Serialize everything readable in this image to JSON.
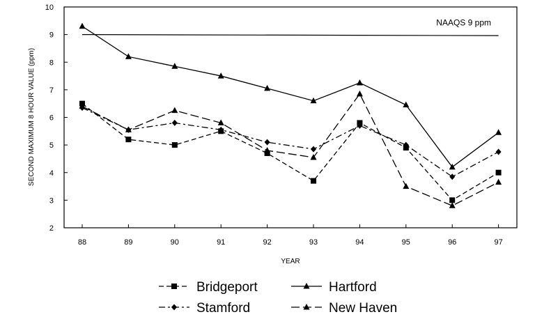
{
  "chart_data": {
    "type": "line",
    "xlabel": "YEAR",
    "ylabel": "SECOND MAXIMUM 8 HOUR VALUE (ppm)",
    "x": [
      "88",
      "89",
      "90",
      "91",
      "92",
      "93",
      "94",
      "95",
      "96",
      "97"
    ],
    "ylim": [
      2,
      10
    ],
    "yticks": [
      "2",
      "3",
      "4",
      "5",
      "6",
      "7",
      "8",
      "9",
      "10"
    ],
    "grid": false,
    "legend_position": "bottom",
    "reference_line": {
      "label": "NAAQS 9 ppm",
      "value": 9
    },
    "series": [
      {
        "name": "Bridgeport",
        "marker": "square",
        "dash": "dashed",
        "values": [
          6.5,
          5.2,
          5.0,
          5.5,
          4.7,
          3.7,
          5.8,
          4.9,
          3.0,
          4.0
        ]
      },
      {
        "name": "Hartford",
        "marker": "triangle",
        "dash": "solid",
        "values": [
          9.3,
          8.2,
          7.85,
          7.5,
          7.05,
          6.6,
          7.25,
          6.45,
          4.2,
          5.45
        ]
      },
      {
        "name": "Stamford",
        "marker": "diamond",
        "dash": "dashdot",
        "values": [
          6.35,
          5.55,
          5.8,
          5.55,
          5.1,
          4.85,
          5.7,
          5.0,
          3.85,
          4.75
        ]
      },
      {
        "name": "New Haven",
        "marker": "triangle",
        "dash": "longdash",
        "values": [
          6.4,
          5.55,
          6.25,
          5.8,
          4.8,
          4.55,
          6.85,
          3.5,
          2.8,
          3.65
        ]
      }
    ]
  }
}
